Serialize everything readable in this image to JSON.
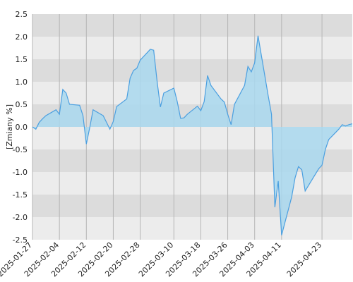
{
  "chart_data": {
    "type": "area",
    "ylabel": "[Zmiany %]",
    "ylim": [
      -2.5,
      2.5
    ],
    "yticks": [
      2.5,
      2.0,
      1.5,
      1.0,
      0.5,
      0.0,
      -0.5,
      -1.0,
      -1.5,
      -2.0,
      -2.5
    ],
    "ytick_labels": [
      "2.5",
      "2.0",
      "1.5",
      "1.0",
      "0.5",
      "0.0",
      "-0.5",
      "-1.0",
      "-1.5",
      "-2.0",
      "-2.5"
    ],
    "xlim": [
      "2025-01-27",
      "2025-05-02"
    ],
    "xticks": [
      "2025-01-27",
      "2025-02-04",
      "2025-02-12",
      "2025-02-20",
      "2025-02-28",
      "2025-03-10",
      "2025-03-18",
      "2025-03-26",
      "2025-04-03",
      "2025-04-11",
      "2025-04-23"
    ],
    "grid": "vertical gridlines at date ticks, alternating horizontal bands",
    "colors": {
      "line": "#4a9fe0",
      "fill": "#a9d8ee",
      "band_dark": "#dcdcdc",
      "band_light": "#ececec",
      "grid": "#b5b5b5"
    },
    "series": [
      {
        "x": [
          "2025-01-27",
          "2025-01-28",
          "2025-01-29",
          "2025-01-30",
          "2025-01-31",
          "2025-02-03",
          "2025-02-04",
          "2025-02-05",
          "2025-02-06",
          "2025-02-07",
          "2025-02-10",
          "2025-02-11",
          "2025-02-12",
          "2025-02-13",
          "2025-02-14",
          "2025-02-17",
          "2025-02-18",
          "2025-02-19",
          "2025-02-20",
          "2025-02-21",
          "2025-02-24",
          "2025-02-25",
          "2025-02-26",
          "2025-02-27",
          "2025-02-28",
          "2025-03-03",
          "2025-03-04",
          "2025-03-05",
          "2025-03-06",
          "2025-03-07",
          "2025-03-10",
          "2025-03-11",
          "2025-03-12",
          "2025-03-13",
          "2025-03-14",
          "2025-03-17",
          "2025-03-18",
          "2025-03-19",
          "2025-03-20",
          "2025-03-21",
          "2025-03-24",
          "2025-03-25",
          "2025-03-26",
          "2025-03-27",
          "2025-03-28",
          "2025-03-31",
          "2025-04-01",
          "2025-04-02",
          "2025-04-03",
          "2025-04-04",
          "2025-04-07",
          "2025-04-08",
          "2025-04-09",
          "2025-04-10",
          "2025-04-11",
          "2025-04-14",
          "2025-04-15",
          "2025-04-16",
          "2025-04-17",
          "2025-04-18",
          "2025-04-22",
          "2025-04-23",
          "2025-04-24",
          "2025-04-25",
          "2025-04-28",
          "2025-04-29",
          "2025-04-30",
          "2025-05-01",
          "2025-05-02"
        ],
        "values": [
          0.0,
          -0.05,
          0.1,
          0.18,
          0.25,
          0.38,
          0.28,
          0.83,
          0.75,
          0.5,
          0.48,
          0.25,
          -0.38,
          -0.02,
          0.38,
          0.25,
          0.1,
          -0.05,
          0.12,
          0.45,
          0.62,
          1.08,
          1.25,
          1.3,
          1.48,
          1.72,
          1.7,
          1.02,
          0.44,
          0.75,
          0.86,
          0.56,
          0.19,
          0.2,
          0.28,
          0.46,
          0.36,
          0.56,
          1.14,
          0.92,
          0.62,
          0.55,
          0.28,
          0.05,
          0.5,
          0.92,
          1.34,
          1.22,
          1.42,
          2.02,
          0.7,
          0.28,
          -1.78,
          -1.2,
          -2.4,
          -1.55,
          -1.13,
          -0.88,
          -0.95,
          -1.42,
          -0.93,
          -0.85,
          -0.5,
          -0.28,
          -0.05,
          0.05,
          0.02,
          0.05,
          0.07
        ]
      }
    ]
  }
}
